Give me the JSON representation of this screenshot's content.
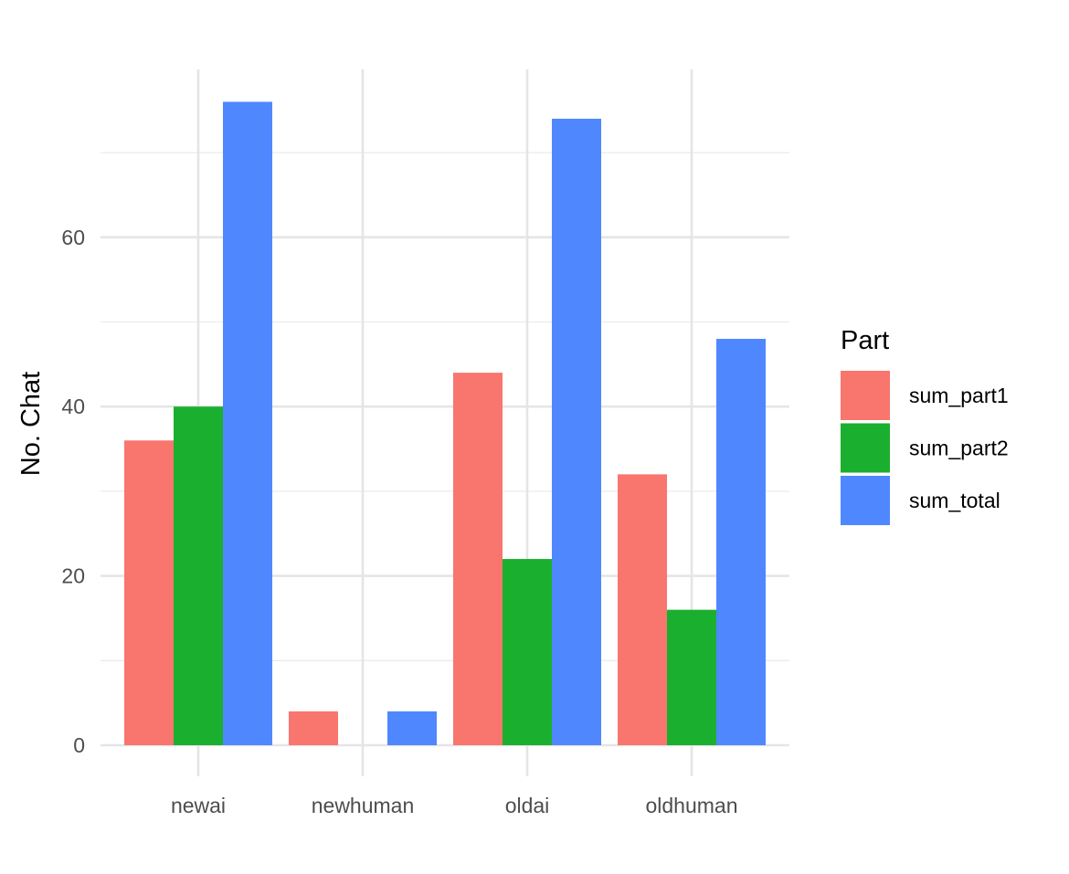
{
  "chart_data": {
    "type": "bar",
    "title": "",
    "xlabel": "",
    "ylabel": "No. Chat",
    "categories": [
      "newai",
      "newhuman",
      "oldai",
      "oldhuman"
    ],
    "series": [
      {
        "name": "sum_part1",
        "color": "#F8766D",
        "values": [
          36,
          4,
          44,
          32
        ]
      },
      {
        "name": "sum_part2",
        "color": "#1BAF2F",
        "values": [
          40,
          0,
          22,
          16
        ]
      },
      {
        "name": "sum_total",
        "color": "#4F87FF",
        "values": [
          76,
          4,
          74,
          48
        ]
      }
    ],
    "ylim": [
      0,
      80
    ],
    "yticks": [
      0,
      20,
      40,
      60
    ],
    "grid": true,
    "legend": {
      "title": "Part",
      "position": "right"
    }
  }
}
